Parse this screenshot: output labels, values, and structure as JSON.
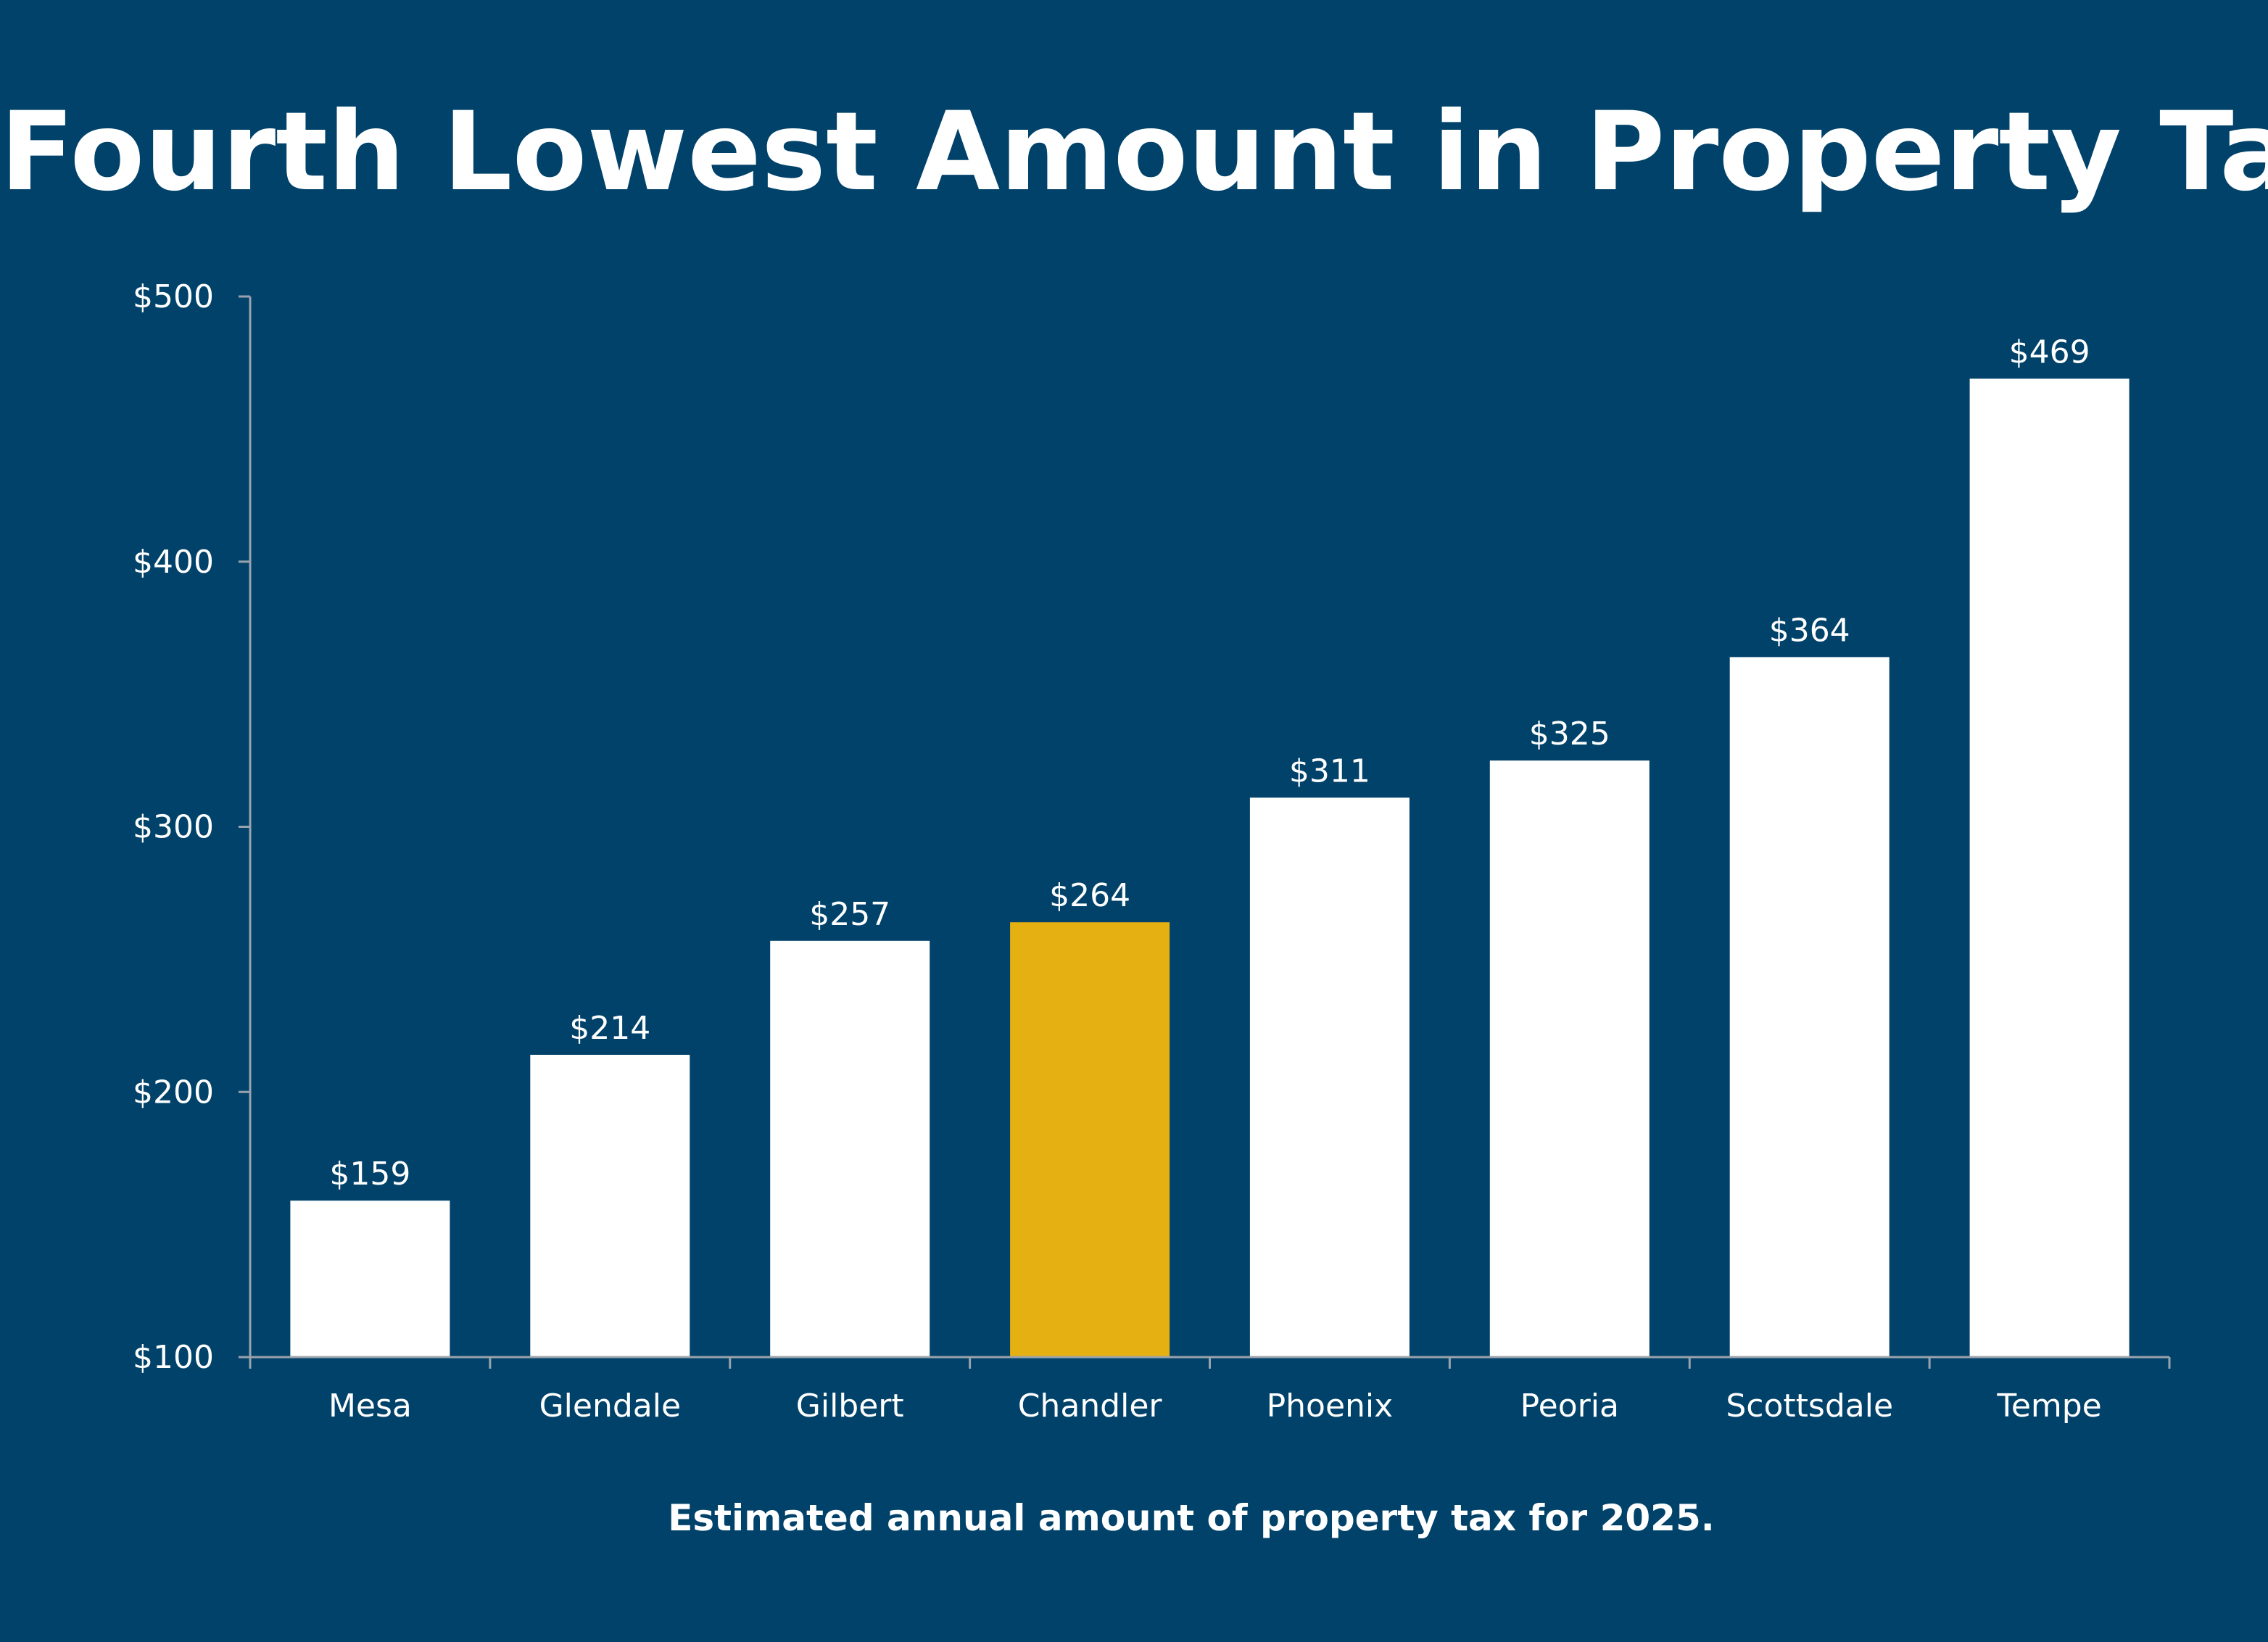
{
  "chart_data": {
    "type": "bar",
    "title": "Fourth Lowest Amount in Property Tax",
    "caption": "Estimated annual amount of property tax for 2025.",
    "xlabel": "",
    "ylabel": "",
    "categories": [
      "Mesa",
      "Glendale",
      "Gilbert",
      "Chandler",
      "Phoenix",
      "Peoria",
      "Scottsdale",
      "Tempe"
    ],
    "values": [
      159,
      214,
      257,
      264,
      311,
      325,
      364,
      469
    ],
    "value_labels": [
      "$159",
      "$214",
      "$257",
      "$264",
      "$311",
      "$325",
      "$364",
      "$469"
    ],
    "highlight_category": "Chandler",
    "ylim": [
      100,
      500
    ],
    "yticks": [
      100,
      200,
      300,
      400,
      500
    ],
    "ytick_labels": [
      "$100",
      "$200",
      "$300",
      "$400",
      "$500"
    ],
    "grid": false,
    "legend": "none",
    "colors": {
      "background": "#01426a",
      "bar": "#ffffff",
      "highlight": "#e5b012",
      "axis": "#9aa3ad",
      "text": "#ffffff"
    }
  }
}
